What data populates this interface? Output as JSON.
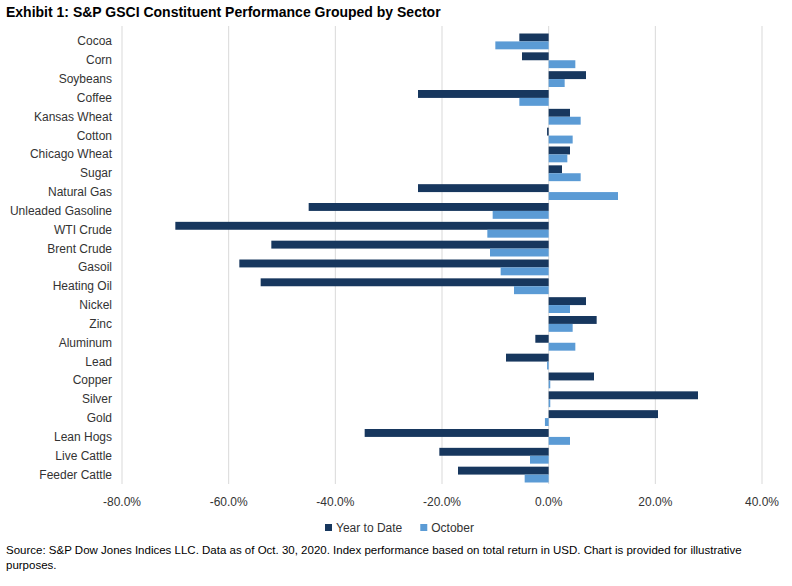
{
  "chart_data": {
    "type": "bar",
    "orientation": "horizontal",
    "title": "Exhibit 1: S&P GSCI Constituent Performance Grouped by Sector",
    "source": "Source: S&P Dow Jones Indices LLC. Data as of Oct. 30, 2020. Index performance based on total return in USD. Chart is provided for illustrative purposes.",
    "categories": [
      "Cocoa",
      "Corn",
      "Soybeans",
      "Coffee",
      "Kansas Wheat",
      "Cotton",
      "Chicago Wheat",
      "Sugar",
      "Natural Gas",
      "Unleaded Gasoline",
      "WTI Crude",
      "Brent Crude",
      "Gasoil",
      "Heating Oil",
      "Nickel",
      "Zinc",
      "Aluminum",
      "Lead",
      "Copper",
      "Silver",
      "Gold",
      "Lean Hogs",
      "Live Cattle",
      "Feeder Cattle"
    ],
    "series": [
      {
        "name": "Year to Date",
        "color": "#17375e",
        "values": [
          -5.5,
          -5,
          7,
          -24.5,
          4,
          -0.3,
          4,
          2.5,
          -24.5,
          -45,
          -70,
          -52,
          -58,
          -54,
          7,
          9,
          -2.5,
          -8,
          8.5,
          28,
          20.5,
          -34.5,
          -20.5,
          -17
        ]
      },
      {
        "name": "October",
        "color": "#5b9bd5",
        "values": [
          -10,
          5,
          3,
          -5.5,
          6,
          4.5,
          3.5,
          6,
          13,
          -10.5,
          -11.5,
          -11,
          -9,
          -6.5,
          4,
          4.5,
          5,
          -0.3,
          0.3,
          0.3,
          -0.7,
          4,
          -3.5,
          -4.5
        ]
      }
    ],
    "xlim": [
      -80,
      40
    ],
    "xticks": [
      {
        "value": -80,
        "label": "-80.0%"
      },
      {
        "value": -60,
        "label": "-60.0%"
      },
      {
        "value": -40,
        "label": "-40.0%"
      },
      {
        "value": -20,
        "label": "-20.0%"
      },
      {
        "value": 0,
        "label": "0.0%"
      },
      {
        "value": 20,
        "label": "20.0%"
      },
      {
        "value": 40,
        "label": "40.0%"
      }
    ],
    "grid": true,
    "legend": "bottom"
  }
}
